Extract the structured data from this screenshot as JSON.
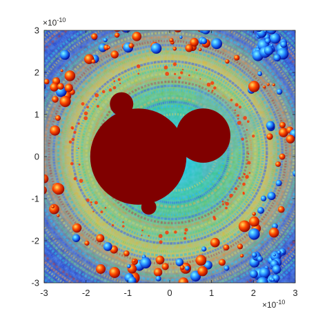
{
  "chart_data": {
    "type": "heatmap",
    "title": "",
    "xlabel": "",
    "ylabel": "",
    "xlim": [
      -3,
      3
    ],
    "ylim": [
      -3,
      3
    ],
    "x_ticks": [
      "-3",
      "-2",
      "-1",
      "0",
      "1",
      "2",
      "3"
    ],
    "y_ticks": [
      "3",
      "2",
      "1",
      "0",
      "-1",
      "-2",
      "-3"
    ],
    "x_exponent": {
      "base": "×10",
      "power": "-10"
    },
    "y_exponent": {
      "base": "×10",
      "power": "-10"
    },
    "grid": false,
    "colormap": "jet",
    "interior_color": "#800000",
    "interior_bulbs": [
      {
        "name": "main-cardioid",
        "cx": -0.75,
        "cy": 0.0,
        "r": 1.15
      },
      {
        "name": "right-bulb",
        "cx": 0.8,
        "cy": 0.5,
        "r": 0.65
      },
      {
        "name": "top-bulb",
        "cx": -1.15,
        "cy": 1.25,
        "r": 0.28
      },
      {
        "name": "bottom-bulb",
        "cx": -0.5,
        "cy": -1.2,
        "r": 0.18
      }
    ]
  }
}
